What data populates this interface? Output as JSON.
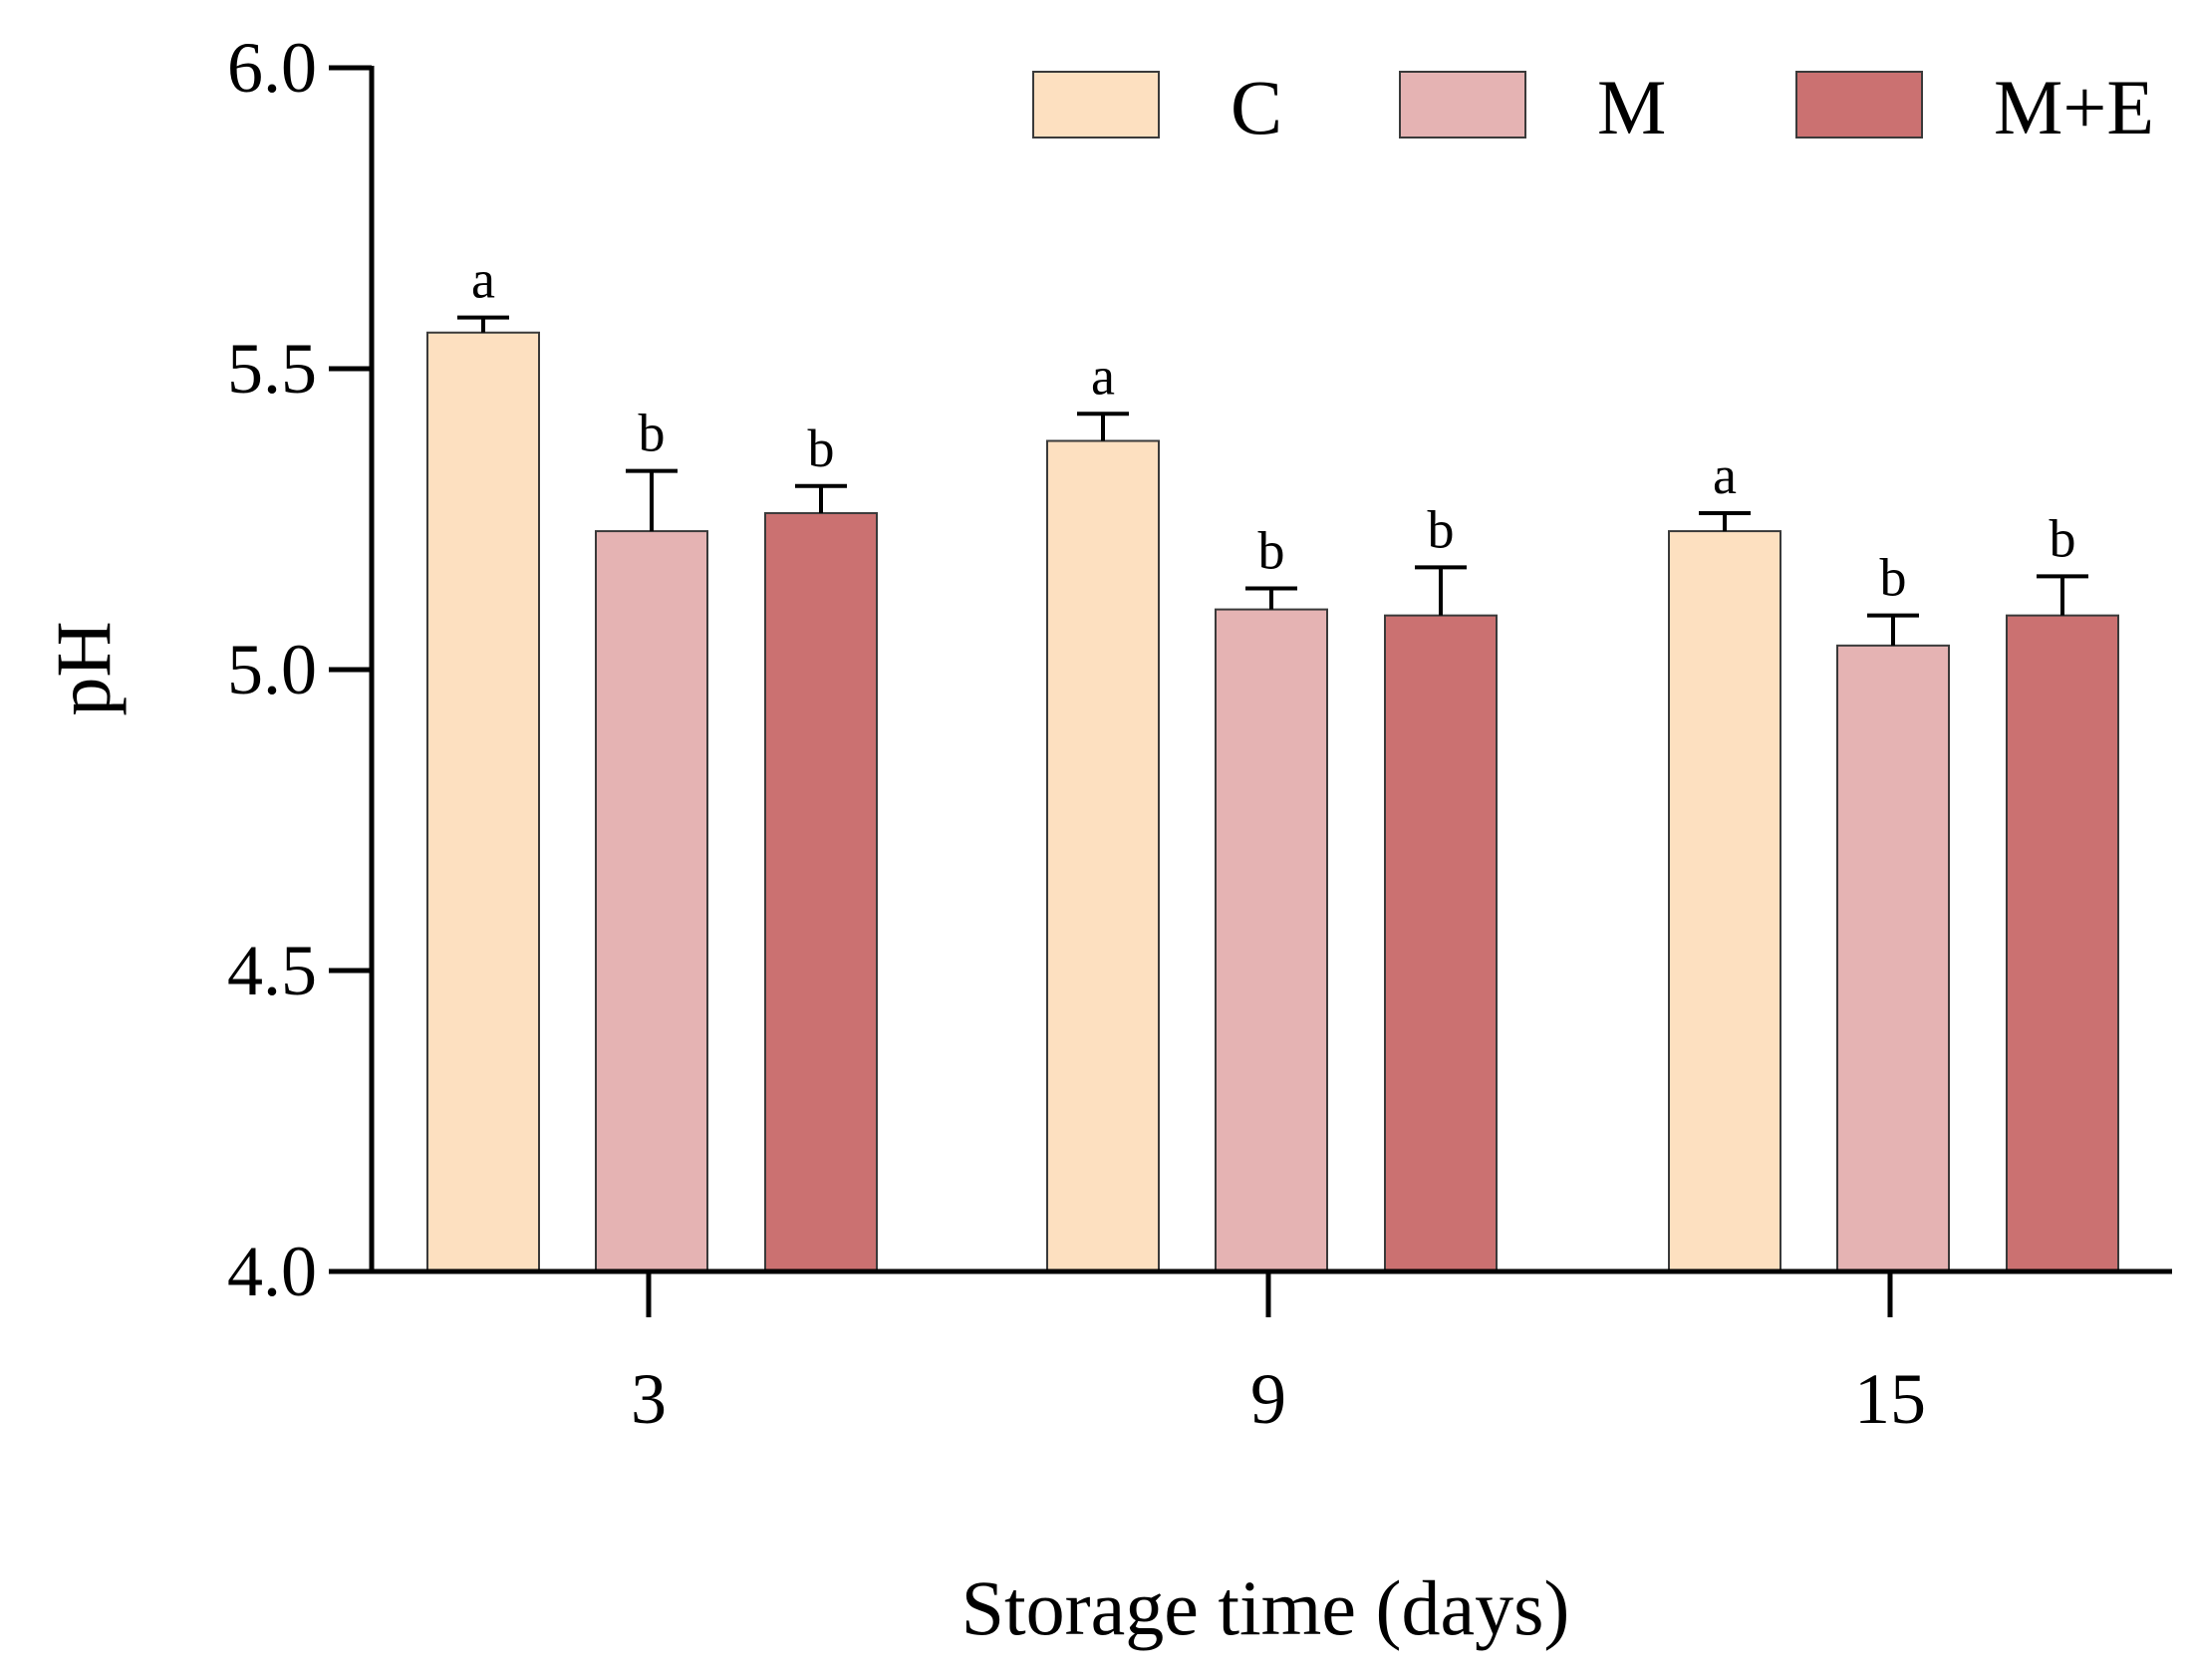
{
  "chart_data": {
    "type": "bar",
    "title": "",
    "xlabel": "Storage time (days)",
    "ylabel": "pH",
    "ylim": [
      4.0,
      6.0
    ],
    "yticks": [
      "4.0",
      "4.5",
      "5.0",
      "5.5",
      "6.0"
    ],
    "categories": [
      "3",
      "9",
      "15"
    ],
    "legend_position": "top-right",
    "grid": false,
    "series": [
      {
        "name": "C",
        "color": "#fde0c0",
        "values": [
          5.56,
          5.38,
          5.23
        ],
        "errors": [
          0.025,
          0.045,
          0.03
        ],
        "labels": [
          "a",
          "a",
          "a"
        ]
      },
      {
        "name": "M",
        "color": "#e5b3b3",
        "values": [
          5.23,
          5.1,
          5.04
        ],
        "errors": [
          0.1,
          0.035,
          0.05
        ],
        "labels": [
          "b",
          "b",
          "b"
        ]
      },
      {
        "name": "M+E",
        "color": "#cb7171",
        "values": [
          5.26,
          5.09,
          5.09
        ],
        "errors": [
          0.045,
          0.08,
          0.065
        ],
        "labels": [
          "b",
          "b",
          "b"
        ]
      }
    ]
  }
}
